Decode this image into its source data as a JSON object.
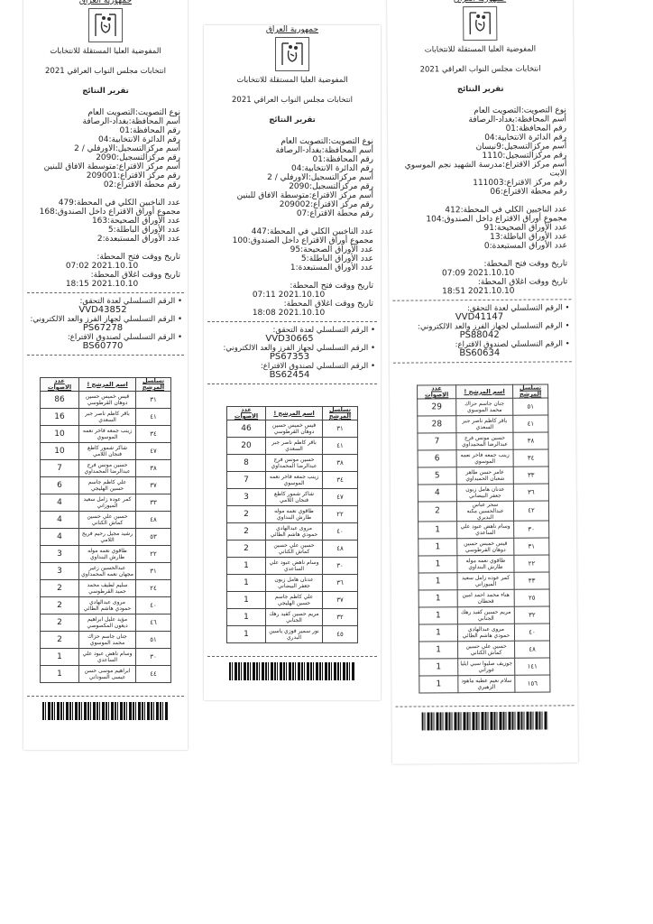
{
  "common": {
    "country": "جمهورية العراق",
    "commission": "المفوضية العليا المستقلة للانتخابات",
    "election": "انتخابات مجلس النواب العراقي 2021",
    "report": "تقرير النتائج",
    "table_headers": [
      "تسلسل المرشح",
      "اسم المرشح !",
      "عدد الاصوات"
    ],
    "serial_labels": [
      "• الرقم التسلسلي لعدة التحقق:",
      "• الرقم التسلسلي لجهاز الفرز والعد الالكتروني:",
      "• الرقم التسلسلي لصندوق الاقتراع:"
    ],
    "open_label": "تاريخ ووقت فتح المحطة:",
    "close_label": "تاريخ ووقت اغلاق المحطة:"
  },
  "receipts": [
    {
      "info": [
        "نوع التصويت:التصويت العام",
        "أسم المحافظة:بغداد-الرصافة",
        "رقم المحافظة:01",
        "رقم الدائرة الانتخابية:04",
        "أسم مركزالتسجيل:الاورفلي / 2",
        "رقم مركزالتسجيل:2090",
        "أسم مركز الاقتراع:متوسطة الافاق للبنين",
        "رقم مركز الاقتراع:209001",
        "رقم محطة الاقتراع:02"
      ],
      "counts": [
        "عدد الناخبين الكلي في المحطة:479",
        "مجموع أوراق الاقتراع داخل الصندوق:168",
        "عدد الأوراق الصحيحة:163",
        "عدد الأوراق الباطلة:5",
        "عدد الأوراق المستبعدة:2"
      ],
      "open": "2021.10.10 07:02",
      "close": "2021.10.10 18:15",
      "serials": [
        "VVD43852",
        "PS67278",
        "BS60770"
      ],
      "rows": [
        [
          "٣١",
          "قيس خميس حسين دوهان القرطوسي",
          "86"
        ],
        [
          "٤١",
          "باقر كاظم ناصر جبر السعدي",
          "16"
        ],
        [
          "٣٤",
          "زينب جمعه فاخر نعمه الموسوي",
          "10"
        ],
        [
          "٤٧",
          "شاكر شمور كاطع فنجان اللامي",
          "10"
        ],
        [
          "٣٨",
          "حسين مونس فرج عبدالرضا المحمداوي",
          "7"
        ],
        [
          "٣٧",
          "علي كاظم جاسم حسين الهليجي",
          "6"
        ],
        [
          "٣٣",
          "كمر عوده زامل سعيد الميوزاني",
          "4"
        ],
        [
          "٤٨",
          "حسين علي حسين كماش الكناني",
          "4"
        ],
        [
          "٥٣",
          "رشيد مجيل رحيم فريج اللامي",
          "4"
        ],
        [
          "٢٢",
          "طاقوي نعمه موله طارش البنداوي",
          "3"
        ],
        [
          "٣١",
          "عبدالحسين زغير مجهان نعمه المحمداوي",
          "3"
        ],
        [
          "٢٤",
          "سليم لطيف محمد حميد القرطوسي",
          "2"
        ],
        [
          "٤٠",
          "مروى عبدالهادي حمودي هاشم الطائي",
          "2"
        ],
        [
          "٤٦",
          "مؤيد عليل ابراهيم ديعون المكصوصي",
          "2"
        ],
        [
          "٥١",
          "جنان جاسم حزاك محمد الموسوي",
          "2"
        ],
        [
          "٣٠",
          "وسام ناهض عبود علي الساعدي",
          "1"
        ],
        [
          "٤٤",
          "ابراهيم موسى حسن عيسى السوداني",
          "1"
        ]
      ]
    },
    {
      "info": [
        "نوع التصويت:التصويت العام",
        "أسم المحافظة:بغداد-الرصافة",
        "رقم المحافظة:01",
        "رقم الدائرة الانتخابية:04",
        "أسم مركزالتسجيل:الاورفلي / 2",
        "رقم مركزالتسجيل:2090",
        "أسم مركز الاقتراع:متوسطة الافاق للبنين",
        "رقم مركز الاقتراع:209002",
        "رقم محطة الاقتراع:07"
      ],
      "counts": [
        "عدد الناخبين الكلي في المحطة:447",
        "مجموع أوراق الاقتراع داخل الصندوق:100",
        "عدد الأوراق الصحيحة:95",
        "عدد الأوراق الباطلة:5",
        "عدد الأوراق المستبعدة:1"
      ],
      "open": "2021.10.10 07:11",
      "close": "2021.10.10 18:08",
      "serials": [
        "VVD30665",
        "PS67353",
        "BS62454"
      ],
      "rows": [
        [
          "٣١",
          "قيس خميس حسين دوهان القرطوسي",
          "46"
        ],
        [
          "٤١",
          "باقر كاظم ناصر جبر السعدي",
          "20"
        ],
        [
          "٣٨",
          "حسين مونس فرج عبدالرضا المحمداوي",
          "8"
        ],
        [
          "٣٤",
          "زينب جمعه فاخر نعمه الموسوي",
          "7"
        ],
        [
          "٤٧",
          "شاكر شمور كاطع فنجان اللامي",
          "3"
        ],
        [
          "٢٢",
          "طاقوي نعمه موله طارش البنداوي",
          "2"
        ],
        [
          "٤٠",
          "مروى عبدالهادي حمودي هاشم الطائي",
          "2"
        ],
        [
          "٤٨",
          "حسين علي حسين كماش الكناني",
          "2"
        ],
        [
          "٣٠",
          "وسام ناهض عبود علي الساعدي",
          "1"
        ],
        [
          "٣٦",
          "عدنان هامل زبون جعفر البيضاني",
          "1"
        ],
        [
          "٣٧",
          "علي كاظم جاسم حسين الهليجي",
          "1"
        ],
        [
          "٣٢",
          "مريم حسين كفيد رهك الجنابي",
          "1"
        ],
        [
          "٤٥",
          "نور سمير فوزي ياسين البدري",
          "1"
        ]
      ]
    },
    {
      "info": [
        "نوع التصويت:التصويت العام",
        "أسم المحافظة:بغداد-الرصافة",
        "رقم المحافظة:01",
        "رقم الدائرة الانتخابية:04",
        "أسم مركزالتسجيل:9نيسان",
        "رقم مركزالتسجيل:1110",
        "أسم مركز الاقتراع:مدرسة الشهيد نجم الموسوي الابت",
        "رقم مركز الاقتراع:111003",
        "رقم محطة الاقتراع:06"
      ],
      "counts": [
        "عدد الناخبين الكلي في المحطة:412",
        "مجموع أوراق الاقتراع داخل الصندوق:104",
        "عدد الأوراق الصحيحة:91",
        "عدد الأوراق الباطلة:13",
        "عدد الأوراق المستبعدة:0"
      ],
      "open": "2021.10.10 07:09",
      "close": "2021.10.10 18:51",
      "serials": [
        "VVD41147",
        "PS88042",
        "BS60634"
      ],
      "rows": [
        [
          "٥١",
          "جنان جاسم حزاك محمد الموسوي",
          "29"
        ],
        [
          "٤١",
          "باقر كاظم ناصر جبر السعدي",
          "28"
        ],
        [
          "٣٨",
          "حسين مونس فرج عبدالرضا المحمداوي",
          "7"
        ],
        [
          "٣٤",
          "زينب جمعه فاخر نعمه الموسوي",
          "6"
        ],
        [
          "٣٣",
          "عامر حسن طاهر شعبان الحميداوي",
          "5"
        ],
        [
          "٣٦",
          "عدنان هامل زبون جعفر البيضاني",
          "4"
        ],
        [
          "٤٢",
          "سحر عباس عبدالحسين مكنه البديري",
          "2"
        ],
        [
          "٣٠",
          "وسام ناهض عبود علي الساعدي",
          "1"
        ],
        [
          "٣١",
          "قيس خميس حسين دوهان القرطوسي",
          "1"
        ],
        [
          "٢٢",
          "طاقوي نعمه موله طارش البنداوي",
          "1"
        ],
        [
          "٣٣",
          "كمر عوده زامل سعيد الميوزاني",
          "1"
        ],
        [
          "٢٥",
          "هناء محمد احمد امين قحطان",
          "1"
        ],
        [
          "٣٢",
          "مريم حسين كفيد رهك الجنابي",
          "1"
        ],
        [
          "٤٠",
          "مروى عبدالهادي حمودي هاشم الطائي",
          "1"
        ],
        [
          "٤٨",
          "حسين علي حسين كماش الكناني",
          "1"
        ],
        [
          "١٤١",
          "جوزيف صليوا سبي ايليا غوراني",
          "1"
        ],
        [
          "١٥٦",
          "سلام نعيم عطيه ماهود الزهيري",
          "1"
        ]
      ]
    }
  ]
}
